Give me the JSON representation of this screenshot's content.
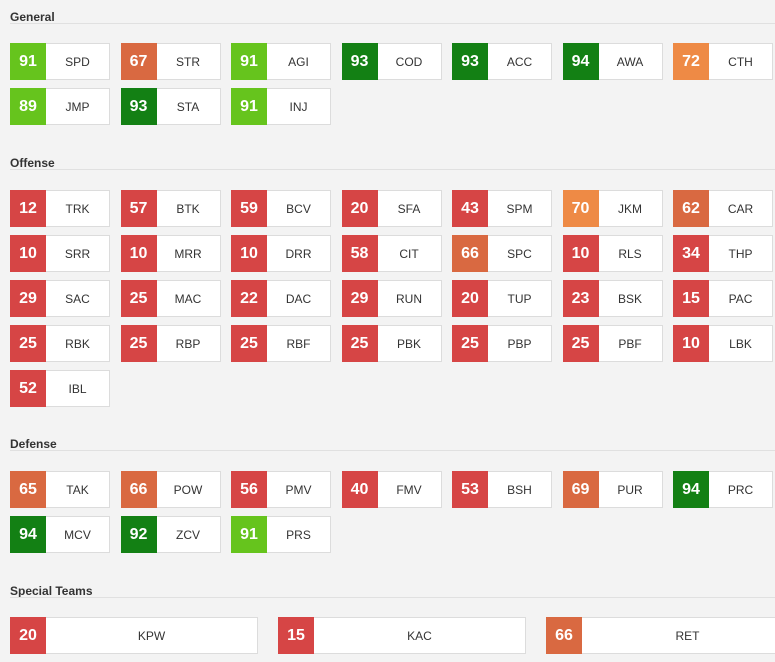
{
  "colors": {
    "dark_green": "#138014",
    "light_green": "#66c41d",
    "orange": "#ee8a45",
    "dark_orange": "#d96941",
    "red": "#d64545"
  },
  "sections": [
    {
      "title": "General",
      "ratings": [
        {
          "value": "91",
          "label": "SPD",
          "color": "#66c41d"
        },
        {
          "value": "67",
          "label": "STR",
          "color": "#d96941"
        },
        {
          "value": "91",
          "label": "AGI",
          "color": "#66c41d"
        },
        {
          "value": "93",
          "label": "COD",
          "color": "#138014"
        },
        {
          "value": "93",
          "label": "ACC",
          "color": "#138014"
        },
        {
          "value": "94",
          "label": "AWA",
          "color": "#138014"
        },
        {
          "value": "72",
          "label": "CTH",
          "color": "#ee8a45"
        },
        {
          "value": "89",
          "label": "JMP",
          "color": "#66c41d"
        },
        {
          "value": "93",
          "label": "STA",
          "color": "#138014"
        },
        {
          "value": "91",
          "label": "INJ",
          "color": "#66c41d"
        }
      ]
    },
    {
      "title": "Offense",
      "ratings": [
        {
          "value": "12",
          "label": "TRK",
          "color": "#d64545"
        },
        {
          "value": "57",
          "label": "BTK",
          "color": "#d64545"
        },
        {
          "value": "59",
          "label": "BCV",
          "color": "#d64545"
        },
        {
          "value": "20",
          "label": "SFA",
          "color": "#d64545"
        },
        {
          "value": "43",
          "label": "SPM",
          "color": "#d64545"
        },
        {
          "value": "70",
          "label": "JKM",
          "color": "#ee8a45"
        },
        {
          "value": "62",
          "label": "CAR",
          "color": "#d96941"
        },
        {
          "value": "10",
          "label": "SRR",
          "color": "#d64545"
        },
        {
          "value": "10",
          "label": "MRR",
          "color": "#d64545"
        },
        {
          "value": "10",
          "label": "DRR",
          "color": "#d64545"
        },
        {
          "value": "58",
          "label": "CIT",
          "color": "#d64545"
        },
        {
          "value": "66",
          "label": "SPC",
          "color": "#d96941"
        },
        {
          "value": "10",
          "label": "RLS",
          "color": "#d64545"
        },
        {
          "value": "34",
          "label": "THP",
          "color": "#d64545"
        },
        {
          "value": "29",
          "label": "SAC",
          "color": "#d64545"
        },
        {
          "value": "25",
          "label": "MAC",
          "color": "#d64545"
        },
        {
          "value": "22",
          "label": "DAC",
          "color": "#d64545"
        },
        {
          "value": "29",
          "label": "RUN",
          "color": "#d64545"
        },
        {
          "value": "20",
          "label": "TUP",
          "color": "#d64545"
        },
        {
          "value": "23",
          "label": "BSK",
          "color": "#d64545"
        },
        {
          "value": "15",
          "label": "PAC",
          "color": "#d64545"
        },
        {
          "value": "25",
          "label": "RBK",
          "color": "#d64545"
        },
        {
          "value": "25",
          "label": "RBP",
          "color": "#d64545"
        },
        {
          "value": "25",
          "label": "RBF",
          "color": "#d64545"
        },
        {
          "value": "25",
          "label": "PBK",
          "color": "#d64545"
        },
        {
          "value": "25",
          "label": "PBP",
          "color": "#d64545"
        },
        {
          "value": "25",
          "label": "PBF",
          "color": "#d64545"
        },
        {
          "value": "10",
          "label": "LBK",
          "color": "#d64545"
        },
        {
          "value": "52",
          "label": "IBL",
          "color": "#d64545"
        }
      ]
    },
    {
      "title": "Defense",
      "ratings": [
        {
          "value": "65",
          "label": "TAK",
          "color": "#d96941"
        },
        {
          "value": "66",
          "label": "POW",
          "color": "#d96941"
        },
        {
          "value": "56",
          "label": "PMV",
          "color": "#d64545"
        },
        {
          "value": "40",
          "label": "FMV",
          "color": "#d64545"
        },
        {
          "value": "53",
          "label": "BSH",
          "color": "#d64545"
        },
        {
          "value": "69",
          "label": "PUR",
          "color": "#d96941"
        },
        {
          "value": "94",
          "label": "PRC",
          "color": "#138014"
        },
        {
          "value": "94",
          "label": "MCV",
          "color": "#138014"
        },
        {
          "value": "92",
          "label": "ZCV",
          "color": "#138014"
        },
        {
          "value": "91",
          "label": "PRS",
          "color": "#66c41d"
        }
      ]
    },
    {
      "title": "Special Teams",
      "ratings": [
        {
          "value": "20",
          "label": "KPW",
          "color": "#d64545"
        },
        {
          "value": "15",
          "label": "KAC",
          "color": "#d64545"
        },
        {
          "value": "66",
          "label": "RET",
          "color": "#d96941"
        }
      ]
    }
  ]
}
